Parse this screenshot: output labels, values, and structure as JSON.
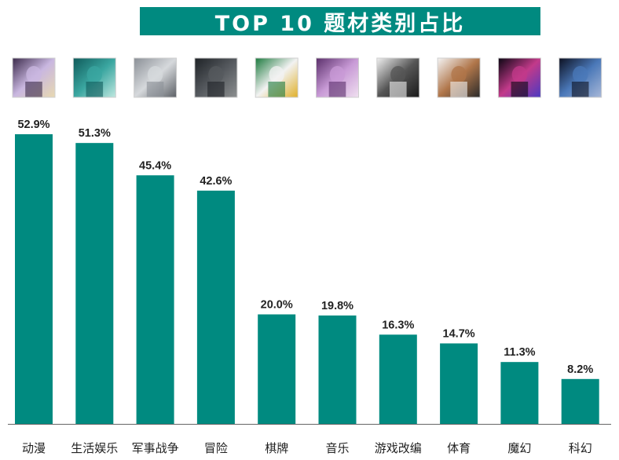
{
  "title": "TOP 10 题材类别占比",
  "colors": {
    "bar": "#008a80",
    "title_bg": "#008a80",
    "title_text": "#ffffff",
    "axis": "#666666"
  },
  "thumbnails": [
    {
      "icon": "anime-character-icon",
      "colors": [
        "#3b2a4a",
        "#c9b7e0",
        "#e8d9b0"
      ]
    },
    {
      "icon": "cyclist-underwater-icon",
      "colors": [
        "#0f5a5a",
        "#3aa6a0",
        "#bfe8e0"
      ]
    },
    {
      "icon": "fighter-jet-icon",
      "colors": [
        "#8a8f96",
        "#d6d9dc",
        "#5c6066"
      ]
    },
    {
      "icon": "adventurer-icon",
      "colors": [
        "#1e2226",
        "#55595e",
        "#8c8f90"
      ]
    },
    {
      "icon": "playing-cards-icon",
      "colors": [
        "#1c7a3e",
        "#f2f2f2",
        "#e0b02a"
      ]
    },
    {
      "icon": "microphone-icon",
      "colors": [
        "#5a2f6a",
        "#c89ad6",
        "#f0e0f0"
      ]
    },
    {
      "icon": "guitarist-icon",
      "colors": [
        "#f0f0f0",
        "#555555",
        "#1a1a1a"
      ]
    },
    {
      "icon": "athlete-icon",
      "colors": [
        "#f4f4f4",
        "#b0764a",
        "#2a2a2a"
      ]
    },
    {
      "icon": "plasma-orb-icon",
      "colors": [
        "#0a0612",
        "#c23a8a",
        "#4a3ac2"
      ]
    },
    {
      "icon": "robot-icon",
      "colors": [
        "#0c1020",
        "#4a78b8",
        "#a8b8d8"
      ]
    }
  ],
  "chart_data": {
    "type": "bar",
    "title": "TOP 10 题材类别占比",
    "categories": [
      "动漫",
      "生活娱乐",
      "军事战争",
      "冒险",
      "棋牌",
      "音乐",
      "游戏改编",
      "体育",
      "魔幻",
      "科幻"
    ],
    "values": [
      52.9,
      51.3,
      45.4,
      42.6,
      20.0,
      19.8,
      16.3,
      14.7,
      11.3,
      8.2
    ],
    "value_labels": [
      "52.9%",
      "51.3%",
      "45.4%",
      "42.6%",
      "20.0%",
      "19.8%",
      "16.3%",
      "14.7%",
      "11.3%",
      "8.2%"
    ],
    "xlabel": "",
    "ylabel": "",
    "ylim": [
      0,
      52.9
    ],
    "grid": false,
    "legend": "none"
  }
}
